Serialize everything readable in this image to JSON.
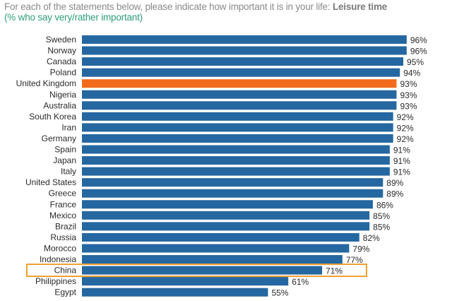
{
  "chart_data": {
    "type": "bar",
    "orientation": "horizontal",
    "title_prefix": "For each of the statements below, please indicate how important it is in your life: ",
    "title_emphasis": "Leisure time",
    "subtitle": "(% who say very/rather important)",
    "xlabel": "",
    "ylabel": "",
    "xlim": [
      0,
      100
    ],
    "grid": false,
    "value_suffix": "%",
    "categories": [
      "Sweden",
      "Norway",
      "Canada",
      "Poland",
      "United Kingdom",
      "Nigeria",
      "Australia",
      "South Korea",
      "Iran",
      "Germany",
      "Spain",
      "Japan",
      "Italy",
      "United States",
      "Greece",
      "France",
      "Mexico",
      "Brazil",
      "Russia",
      "Morocco",
      "Indonesia",
      "China",
      "Philippines",
      "Egypt"
    ],
    "values": [
      96,
      96,
      95,
      94,
      93,
      93,
      93,
      92,
      92,
      92,
      91,
      91,
      91,
      89,
      89,
      86,
      85,
      85,
      82,
      79,
      77,
      71,
      61,
      55
    ],
    "highlight_fill": "United Kingdom",
    "highlight_outline": "China",
    "colors": {
      "bar": "#2567a0",
      "highlight_fill": "#f26a1b",
      "highlight_outline": "#f0a030",
      "title": "#8a8a8a",
      "subtitle": "#2f9e7a"
    }
  }
}
